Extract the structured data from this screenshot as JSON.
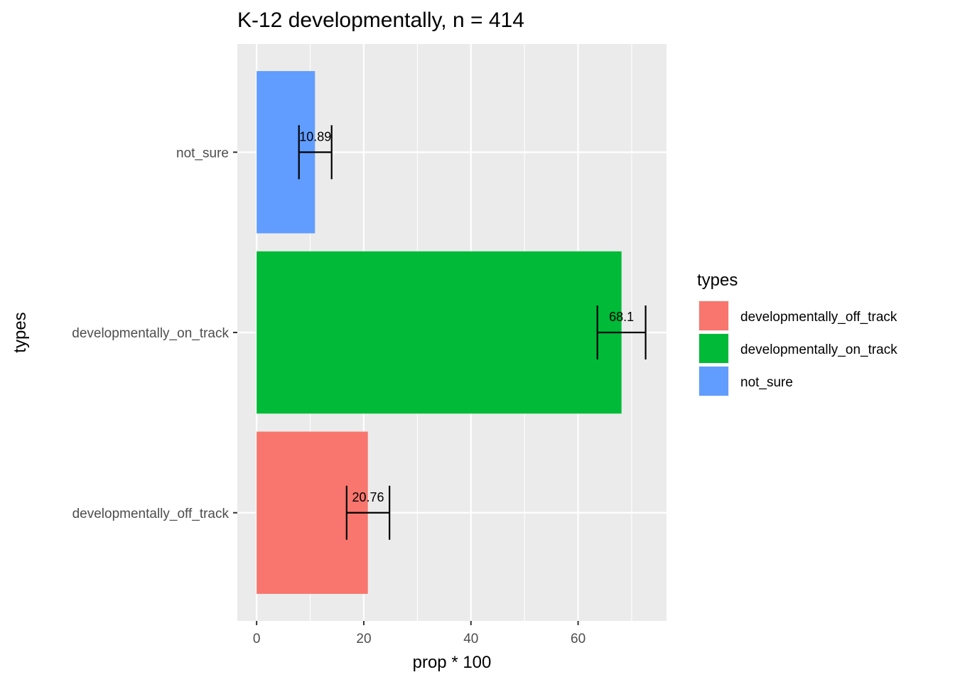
{
  "chart_data": {
    "type": "bar",
    "orientation": "horizontal",
    "title": "K-12 developmentally, n = 414",
    "xlabel": "prop * 100",
    "ylabel": "types",
    "categories": [
      "developmentally_off_track",
      "developmentally_on_track",
      "not_sure"
    ],
    "values": [
      20.76,
      68.1,
      10.89
    ],
    "value_labels": [
      "20.76",
      "68.1",
      "10.89"
    ],
    "error_low": [
      16.8,
      63.6,
      7.9
    ],
    "error_high": [
      24.8,
      72.6,
      14.0
    ],
    "colors": [
      "#F8766D",
      "#00BA38",
      "#619CFF"
    ],
    "xlim": [
      -3.6,
      76.5
    ],
    "xticks": [
      0,
      20,
      40,
      60
    ],
    "xtick_labels": [
      "0",
      "20",
      "40",
      "60"
    ],
    "grid": true,
    "panel_background": "#EBEBEB",
    "legend": {
      "title": "types",
      "position": "right",
      "entries": [
        "developmentally_off_track",
        "developmentally_on_track",
        "not_sure"
      ]
    }
  }
}
